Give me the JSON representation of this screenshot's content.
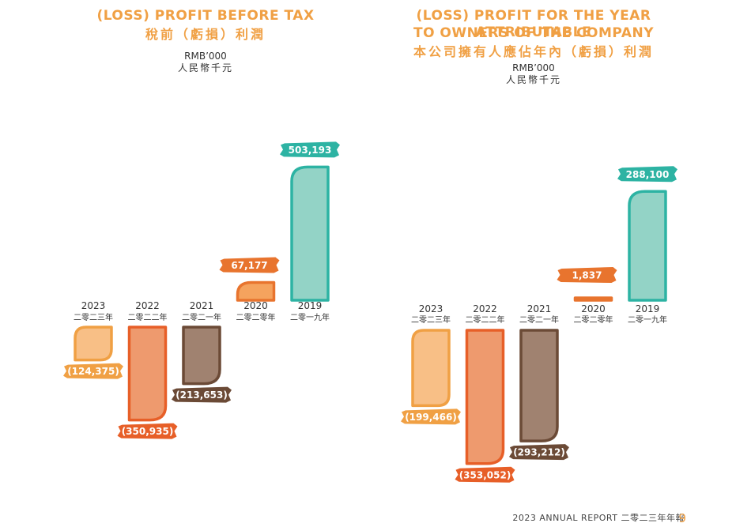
{
  "chart_data": [
    {
      "type": "bar",
      "title": "(LOSS) PROFIT BEFORE TAX",
      "subtitle": "稅前（虧損）利潤",
      "ylabel": "RMB’000",
      "ylabel_zh": "人民幣千元",
      "categories": [
        "2023",
        "2022",
        "2021",
        "2020",
        "2019"
      ],
      "categories_zh": [
        "二零二三年",
        "二零二二年",
        "二零二一年",
        "二零二零年",
        "二零一九年"
      ],
      "values": [
        -124375,
        -350935,
        -213653,
        67177,
        503193
      ],
      "value_labels": [
        "(124,375)",
        "(350,935)",
        "(213,653)",
        "67,177",
        "503,193"
      ],
      "colors": [
        "#f8bf86",
        "#ee9a6e",
        "#a08270",
        "#f5a35e",
        "#93d3c6"
      ],
      "stroke_colors": [
        "#f0a044",
        "#e75f28",
        "#6b4a36",
        "#e8742e",
        "#2db3a3"
      ],
      "label_colors": [
        "#f0a044",
        "#e75f28",
        "#6b4a36",
        "#e8742e",
        "#2db3a3"
      ]
    },
    {
      "type": "bar",
      "title": "(LOSS) PROFIT FOR THE YEAR ATTRIBUTABLE TO OWNERS OF THE COMPANY",
      "title_lines": [
        "(LOSS) PROFIT FOR THE YEAR ATTRIBUTABLE",
        "TO OWNERS OF THE COMPANY"
      ],
      "subtitle": "本公司擁有人應佔年內（虧損）利潤",
      "ylabel": "RMB’000",
      "ylabel_zh": "人民幣千元",
      "categories": [
        "2023",
        "2022",
        "2021",
        "2020",
        "2019"
      ],
      "categories_zh": [
        "二零二三年",
        "二零二二年",
        "二零二一年",
        "二零二零年",
        "二零一九年"
      ],
      "values": [
        -199466,
        -353052,
        -293212,
        1837,
        288100
      ],
      "value_labels": [
        "(199,466)",
        "(353,052)",
        "(293,212)",
        "1,837",
        "288,100"
      ],
      "colors": [
        "#f8bf86",
        "#ee9a6e",
        "#a08270",
        "#f5a35e",
        "#93d3c6"
      ],
      "stroke_colors": [
        "#f0a044",
        "#e75f28",
        "#6b4a36",
        "#e8742e",
        "#2db3a3"
      ],
      "label_colors": [
        "#f0a044",
        "#e75f28",
        "#6b4a36",
        "#e8742e",
        "#2db3a3"
      ]
    }
  ],
  "footer": {
    "report_label": "2023 ANNUAL REPORT 二零二三年年報",
    "page_number": "9"
  }
}
